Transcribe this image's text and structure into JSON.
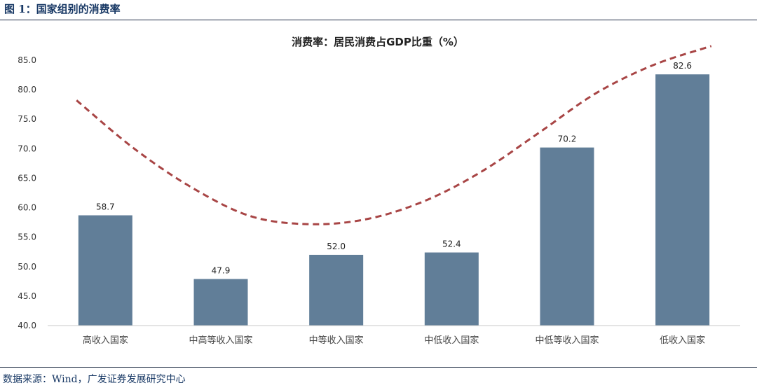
{
  "figure": {
    "title": "图 1：国家组别的消费率",
    "source": "数据来源：Wind，广发证券发展研究中心"
  },
  "chart_data": {
    "type": "bar",
    "title": "消费率：居民消费占GDP比重（%）",
    "categories": [
      "高收入国家",
      "中高等收入国家",
      "中等收入国家",
      "中低收入国家",
      "中低等收入国家",
      "低收入国家"
    ],
    "values": [
      58.7,
      47.9,
      52.0,
      52.4,
      70.2,
      82.6
    ],
    "data_labels": [
      "58.7",
      "47.9",
      "52.0",
      "52.4",
      "70.2",
      "82.6"
    ],
    "ylim": [
      40,
      85
    ],
    "yticks": [
      "40.0",
      "45.0",
      "50.0",
      "55.0",
      "60.0",
      "65.0",
      "70.0",
      "75.0",
      "80.0",
      "85.0"
    ],
    "grid": false,
    "bar_color": "#617e98",
    "trend": {
      "style": "dashed",
      "color": "#a84545",
      "x": [
        0.25,
        0.75,
        1.25,
        1.75,
        2.25,
        2.75,
        3.25,
        3.75,
        4.25,
        4.75,
        5.25,
        5.75
      ],
      "y": [
        78.2,
        70.0,
        63.4,
        58.6,
        57.2,
        58.0,
        61.0,
        66.0,
        72.6,
        79.4,
        84.2,
        87.4
      ]
    }
  }
}
